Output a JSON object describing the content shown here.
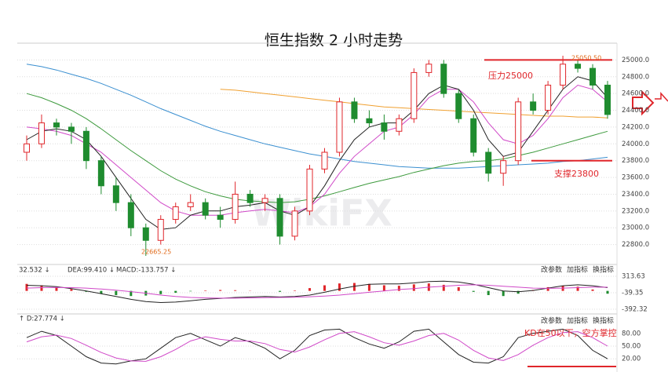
{
  "title": "恒生指数 2 小时走势",
  "watermark": "WikiFX",
  "toolbar": [
    "改参数",
    "加指标",
    "换指标"
  ],
  "chart_data": [
    {
      "type": "candlestick",
      "up_color": "#e0262b",
      "down_color": "#1f8c2f",
      "open": [
        23900,
        24000,
        24250,
        24200,
        24150,
        23800,
        23500,
        23300,
        23000,
        22850,
        23100,
        23250,
        23300,
        23150,
        23100,
        23400,
        23300,
        23350,
        22900,
        23200,
        23700,
        23900,
        24500,
        24300,
        24250,
        24150,
        24300,
        24850,
        24950,
        24600,
        24300,
        23900,
        23650,
        23800,
        24500,
        24400,
        24700,
        24950,
        24900,
        24700
      ],
      "high": [
        24100,
        24350,
        24300,
        24250,
        24200,
        23850,
        23600,
        23400,
        23050,
        23150,
        23300,
        23400,
        23350,
        23250,
        23550,
        23450,
        23400,
        23400,
        23250,
        23750,
        23950,
        24550,
        24550,
        24400,
        24350,
        24350,
        24900,
        25000,
        25000,
        24650,
        24350,
        23950,
        23850,
        24550,
        24600,
        24750,
        25050.5,
        25000,
        24950,
        24750
      ],
      "low": [
        23800,
        23950,
        24100,
        24000,
        23700,
        23400,
        23200,
        22900,
        22665.25,
        22800,
        23050,
        23200,
        23100,
        23000,
        23050,
        23250,
        23200,
        22800,
        22850,
        23150,
        23650,
        23850,
        24250,
        24200,
        24050,
        24100,
        24250,
        24800,
        24550,
        24250,
        23850,
        23550,
        23500,
        23750,
        24350,
        24350,
        24650,
        24850,
        24650,
        24300
      ],
      "close": [
        24000,
        24250,
        24200,
        24150,
        23800,
        23500,
        23300,
        23000,
        22850,
        23100,
        23250,
        23300,
        23150,
        23100,
        23400,
        23300,
        23350,
        22900,
        23200,
        23700,
        23900,
        24500,
        24300,
        24250,
        24150,
        24300,
        24850,
        24950,
        24600,
        24300,
        23900,
        23650,
        23800,
        24500,
        24400,
        24700,
        24950,
        24900,
        24700,
        24350
      ],
      "series": [
        {
          "color": "#3a8fd0",
          "values": [
            24950,
            24920,
            24880,
            24830,
            24780,
            24720,
            24650,
            24580,
            24500,
            24420,
            24350,
            24280,
            24210,
            24150,
            24100,
            24050,
            24000,
            23960,
            23920,
            23880,
            23850,
            23820,
            23790,
            23770,
            23750,
            23730,
            23720,
            23710,
            23710,
            23710,
            23720,
            23730,
            23740,
            23750,
            23760,
            23770,
            23790,
            23800,
            23820,
            23840
          ]
        },
        {
          "color": "#3d9a3d",
          "values": [
            24600,
            24550,
            24480,
            24400,
            24300,
            24180,
            24050,
            23920,
            23800,
            23680,
            23580,
            23500,
            23430,
            23380,
            23340,
            23320,
            23310,
            23300,
            23310,
            23340,
            23380,
            23430,
            23480,
            23530,
            23570,
            23610,
            23660,
            23700,
            23740,
            23770,
            23790,
            23800,
            23820,
            23860,
            23900,
            23950,
            24000,
            24050,
            24100,
            24150
          ]
        },
        {
          "color": "#f0a030",
          "values": [
            null,
            null,
            null,
            null,
            null,
            null,
            null,
            null,
            null,
            null,
            null,
            null,
            null,
            24650,
            24640,
            24620,
            24600,
            24580,
            24560,
            24540,
            24520,
            24500,
            24480,
            24460,
            24440,
            24430,
            24420,
            24410,
            24400,
            24390,
            24380,
            24370,
            24360,
            24350,
            24340,
            24330,
            24330,
            24320,
            24320,
            24310
          ]
        },
        {
          "color": "#d048c8",
          "values": [
            24200,
            24180,
            24150,
            24100,
            24000,
            23900,
            23750,
            23600,
            23450,
            23300,
            23200,
            23150,
            23150,
            23150,
            23180,
            23200,
            23220,
            23200,
            23180,
            23250,
            23400,
            23650,
            23850,
            24000,
            24150,
            24200,
            24350,
            24550,
            24650,
            24650,
            24500,
            24250,
            24050,
            24000,
            24100,
            24300,
            24550,
            24700,
            24650,
            24500
          ]
        },
        {
          "color": "#222222",
          "values": [
            24050,
            24150,
            24180,
            24150,
            24050,
            23850,
            23600,
            23350,
            23100,
            22980,
            23000,
            23150,
            23200,
            23200,
            23250,
            23270,
            23300,
            23200,
            23150,
            23250,
            23500,
            23800,
            24050,
            24200,
            24250,
            24250,
            24400,
            24600,
            24700,
            24650,
            24400,
            24050,
            23850,
            23900,
            24150,
            24400,
            24650,
            24800,
            24750,
            24550
          ]
        }
      ],
      "ylim": [
        22600,
        25200
      ],
      "yticks": [
        {
          "value": 22800,
          "label": "22800.0"
        },
        {
          "value": 23000,
          "label": "23000.0"
        },
        {
          "value": 23200,
          "label": "23200.0"
        },
        {
          "value": 23400,
          "label": "23400.0"
        },
        {
          "value": 23600,
          "label": "23600.0"
        },
        {
          "value": 23800,
          "label": "23800.0"
        },
        {
          "value": 24000,
          "label": "24000.0"
        },
        {
          "value": 24200,
          "label": "24200.0"
        },
        {
          "value": 24400,
          "label": "24400.0"
        },
        {
          "value": 24600,
          "label": "24600.0"
        },
        {
          "value": 24800,
          "label": "24800.0"
        },
        {
          "value": 25000,
          "label": "25000.0"
        }
      ],
      "grid": true,
      "levels": [
        {
          "value": 25000,
          "label": "压力25000",
          "color": "#e0262b"
        },
        {
          "value": 23800,
          "label": "支撑23800",
          "color": "#e0262b"
        }
      ],
      "annotations": [
        "25050.50",
        "22665.25"
      ]
    },
    {
      "type": "macd",
      "legend": [
        "32.532 ↓",
        "DEA:99.410 ↓",
        "MACD:-133.757 ↓"
      ],
      "up_color": "#e0262b",
      "down_color": "#1f8c2f",
      "values": [
        150,
        120,
        80,
        40,
        -20,
        -60,
        -90,
        -110,
        -100,
        -70,
        -40,
        -10,
        10,
        20,
        15,
        5,
        0,
        -20,
        10,
        60,
        120,
        160,
        170,
        150,
        120,
        110,
        140,
        160,
        130,
        80,
        -20,
        -90,
        -110,
        -60,
        20,
        80,
        110,
        90,
        30,
        -60
      ],
      "series": [
        {
          "color": "#222222",
          "values": [
            120,
            110,
            90,
            50,
            0,
            -60,
            -120,
            -180,
            -230,
            -250,
            -240,
            -210,
            -180,
            -160,
            -140,
            -130,
            -120,
            -130,
            -120,
            -90,
            -30,
            40,
            100,
            140,
            150,
            150,
            170,
            200,
            210,
            190,
            140,
            70,
            0,
            -20,
            10,
            60,
            110,
            130,
            110,
            70
          ]
        },
        {
          "color": "#d048c8",
          "values": [
            60,
            70,
            75,
            70,
            60,
            40,
            15,
            -15,
            -50,
            -90,
            -120,
            -140,
            -150,
            -155,
            -155,
            -150,
            -145,
            -140,
            -135,
            -125,
            -110,
            -90,
            -60,
            -30,
            0,
            30,
            50,
            80,
            100,
            120,
            130,
            120,
            100,
            80,
            60,
            55,
            60,
            70,
            80,
            80
          ]
        }
      ],
      "ylim": [
        -392.32,
        313.63
      ],
      "yticks": [
        {
          "value": 313.63,
          "label": "313.63"
        },
        {
          "value": -39.35,
          "label": "-39.35"
        },
        {
          "value": -392.32,
          "label": "-392.32"
        }
      ]
    },
    {
      "type": "kd",
      "legend": [
        "↑ D:27.774 ↓"
      ],
      "series": [
        {
          "color": "#222222",
          "values": [
            70,
            85,
            75,
            50,
            25,
            10,
            8,
            15,
            20,
            45,
            70,
            80,
            65,
            50,
            70,
            60,
            45,
            20,
            40,
            75,
            88,
            90,
            70,
            55,
            45,
            60,
            85,
            90,
            60,
            30,
            12,
            10,
            25,
            70,
            80,
            85,
            90,
            75,
            40,
            20
          ]
        },
        {
          "color": "#d048c8",
          "values": [
            60,
            72,
            76,
            68,
            52,
            35,
            22,
            15,
            14,
            25,
            42,
            62,
            72,
            66,
            62,
            62,
            56,
            42,
            36,
            48,
            65,
            80,
            84,
            72,
            58,
            52,
            62,
            75,
            80,
            64,
            40,
            22,
            16,
            30,
            52,
            70,
            82,
            84,
            70,
            50
          ]
        }
      ],
      "ylim": [
        0,
        100
      ],
      "yticks": [
        {
          "value": 20,
          "label": "20.00"
        },
        {
          "value": 50,
          "label": "50.00"
        },
        {
          "value": 80,
          "label": "80.00"
        }
      ],
      "annotation": "KD在50以下，空方掌控"
    }
  ]
}
